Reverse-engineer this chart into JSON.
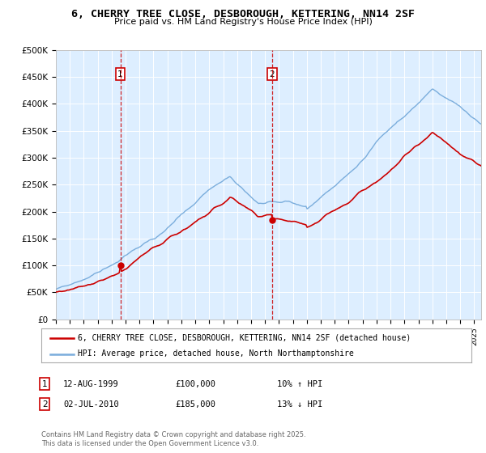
{
  "title": "6, CHERRY TREE CLOSE, DESBOROUGH, KETTERING, NN14 2SF",
  "subtitle": "Price paid vs. HM Land Registry's House Price Index (HPI)",
  "ylim": [
    0,
    500000
  ],
  "yticks": [
    0,
    50000,
    100000,
    150000,
    200000,
    250000,
    300000,
    350000,
    400000,
    450000,
    500000
  ],
  "ytick_labels": [
    "£0",
    "£50K",
    "£100K",
    "£150K",
    "£200K",
    "£250K",
    "£300K",
    "£350K",
    "£400K",
    "£450K",
    "£500K"
  ],
  "x_start_year": 1995,
  "x_end_year": 2025,
  "hpi_color": "#7aaddc",
  "price_color": "#cc0000",
  "vline_color": "#cc0000",
  "bg_color": "#ddeeff",
  "sale1_year": 1999.62,
  "sale1_value": 100000,
  "sale2_year": 2010.5,
  "sale2_value": 185000,
  "legend_line1": "6, CHERRY TREE CLOSE, DESBOROUGH, KETTERING, NN14 2SF (detached house)",
  "legend_line2": "HPI: Average price, detached house, North Northamptonshire",
  "sale1_date": "12-AUG-1999",
  "sale1_price": "£100,000",
  "sale1_hpi": "10% ↑ HPI",
  "sale2_date": "02-JUL-2010",
  "sale2_price": "£185,000",
  "sale2_hpi": "13% ↓ HPI",
  "footer": "Contains HM Land Registry data © Crown copyright and database right 2025.\nThis data is licensed under the Open Government Licence v3.0."
}
